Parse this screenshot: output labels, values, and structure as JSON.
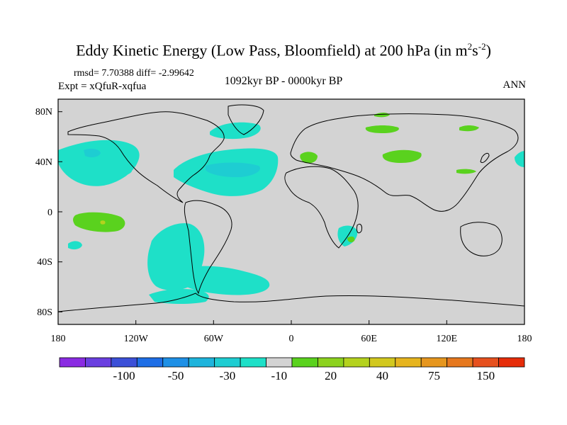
{
  "title": {
    "main": "Eddy Kinetic Energy (Low Pass, Bloomfield) at 200 hPa (in m",
    "sup1": "2",
    "mid": "s",
    "sup2": "-2",
    "end": ")"
  },
  "stats": "rmsd= 7.70388 diff= -2.99642",
  "expt": "Expt = xQfuR-xqfua",
  "period": "1092kyr BP - 0000kyr BP",
  "season": "ANN",
  "map": {
    "lon_range": [
      -180,
      180
    ],
    "lat_range": [
      -90,
      90
    ],
    "xticks": [
      "180",
      "120W",
      "60W",
      "0",
      "60E",
      "120E",
      "180"
    ],
    "yticks": [
      "80N",
      "40N",
      "0",
      "40S",
      "80S"
    ],
    "ocean_color": "#d3d3d3",
    "coast_color": "#000000"
  },
  "colorbar": {
    "colors": [
      "#8a2be2",
      "#6a3fe0",
      "#3c50d8",
      "#1e6ee6",
      "#1e90e6",
      "#1eb4dc",
      "#1ecdd2",
      "#1ee0c8",
      "#d3d3d3",
      "#5ad21e",
      "#8cd21e",
      "#b4d21e",
      "#d2c81e",
      "#e6b41e",
      "#e6961e",
      "#e6781e",
      "#e6501e",
      "#e62d0a"
    ],
    "labels": [
      {
        "text": "-100",
        "boundary": 2
      },
      {
        "text": "-50",
        "boundary": 4
      },
      {
        "text": "-30",
        "boundary": 6
      },
      {
        "text": "-10",
        "boundary": 8
      },
      {
        "text": "20",
        "boundary": 10
      },
      {
        "text": "40",
        "boundary": 12
      },
      {
        "text": "75",
        "boundary": 14
      },
      {
        "text": "150",
        "boundary": 16
      }
    ]
  }
}
